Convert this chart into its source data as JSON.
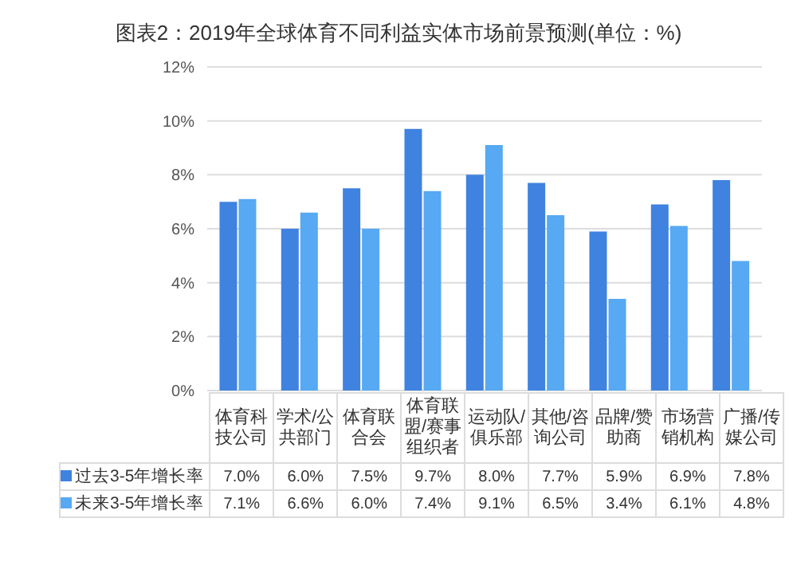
{
  "chart_data": {
    "type": "bar",
    "title": "图表2：2019年全球体育不同利益实体市场前景预测(单位：%)",
    "categories": [
      "体育科技公司",
      "学术/公共部门",
      "体育联合会",
      "体育联盟/赛事组织者",
      "运动队/俱乐部",
      "其他/咨询公司",
      "品牌/赞助商",
      "市场营销机构",
      "广播/传媒公司"
    ],
    "series": [
      {
        "name": "过去3-5年增长率",
        "color": "#3f82e0",
        "values": [
          7.0,
          6.0,
          7.5,
          9.7,
          8.0,
          7.7,
          5.9,
          6.9,
          7.8
        ],
        "value_labels": [
          "7.0%",
          "6.0%",
          "7.5%",
          "9.7%",
          "8.0%",
          "7.7%",
          "5.9%",
          "6.9%",
          "7.8%"
        ]
      },
      {
        "name": "未来3-5年增长率",
        "color": "#56a9f2",
        "values": [
          7.1,
          6.6,
          6.0,
          7.4,
          9.1,
          6.5,
          3.4,
          6.1,
          4.8
        ],
        "value_labels": [
          "7.1%",
          "6.6%",
          "6.0%",
          "7.4%",
          "9.1%",
          "6.5%",
          "3.4%",
          "6.1%",
          "4.8%"
        ]
      }
    ],
    "ylim": [
      0,
      12
    ],
    "yticks": [
      {
        "value": 0,
        "label": "0%"
      },
      {
        "value": 2,
        "label": "2%"
      },
      {
        "value": 4,
        "label": "4%"
      },
      {
        "value": 6,
        "label": "6%"
      },
      {
        "value": 8,
        "label": "8%"
      },
      {
        "value": 10,
        "label": "10%"
      },
      {
        "value": 12,
        "label": "12%"
      }
    ],
    "grid": "y",
    "legend": "bottom"
  }
}
